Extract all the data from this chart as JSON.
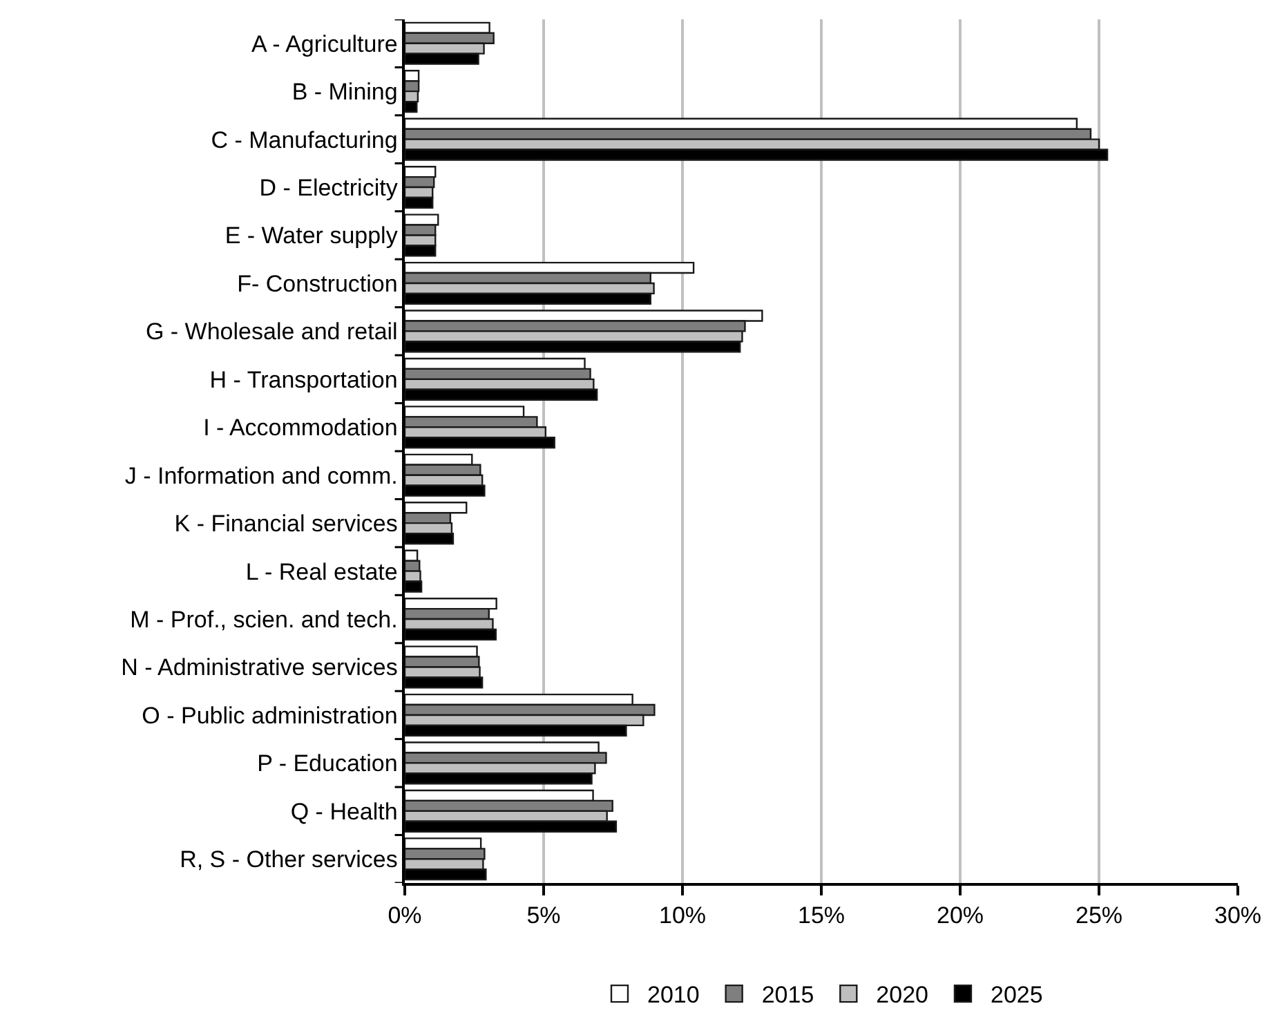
{
  "chart_data": {
    "type": "bar",
    "orientation": "horizontal",
    "categories": [
      "A - Agriculture",
      "B - Mining",
      "C - Manufacturing",
      "D - Electricity",
      "E - Water supply",
      "F- Construction",
      "G - Wholesale and retail",
      "H - Transportation",
      "I - Accommodation",
      "J - Information and comm.",
      "K - Financial services",
      "L - Real estate",
      "M - Prof., scien. and tech.",
      "N - Administrative services",
      "O - Public administration",
      "P - Education",
      "Q - Health",
      "R, S - Other services"
    ],
    "series": [
      {
        "name": "2010",
        "color": "#ffffff",
        "values": [
          3.05,
          0.5,
          24.2,
          1.1,
          1.2,
          10.4,
          12.87,
          6.48,
          4.28,
          2.42,
          2.22,
          0.45,
          3.3,
          2.6,
          8.2,
          6.98,
          6.78,
          2.74
        ]
      },
      {
        "name": "2015",
        "color": "#7f7f7f",
        "values": [
          3.2,
          0.5,
          24.7,
          1.05,
          1.1,
          8.85,
          12.25,
          6.68,
          4.76,
          2.72,
          1.64,
          0.53,
          3.03,
          2.67,
          8.99,
          7.25,
          7.48,
          2.87
        ]
      },
      {
        "name": "2020",
        "color": "#bfbfbf",
        "values": [
          2.85,
          0.47,
          25.0,
          1.0,
          1.1,
          8.97,
          12.15,
          6.8,
          5.07,
          2.79,
          1.69,
          0.56,
          3.17,
          2.7,
          8.59,
          6.85,
          7.28,
          2.82
        ]
      },
      {
        "name": "2025",
        "color": "#000000",
        "values": [
          2.65,
          0.43,
          25.3,
          1.0,
          1.1,
          8.85,
          12.07,
          6.92,
          5.39,
          2.87,
          1.74,
          0.6,
          3.28,
          2.79,
          7.97,
          6.73,
          7.61,
          2.92
        ]
      }
    ],
    "xlim": [
      0,
      30
    ],
    "xticks": [
      {
        "value": 0,
        "label": "0%"
      },
      {
        "value": 5,
        "label": "5%"
      },
      {
        "value": 10,
        "label": "10%"
      },
      {
        "value": 15,
        "label": "15%"
      },
      {
        "value": 20,
        "label": "20%"
      },
      {
        "value": 25,
        "label": "25%"
      },
      {
        "value": 30,
        "label": "30%"
      }
    ],
    "grid": "x",
    "legend": "bottom"
  }
}
